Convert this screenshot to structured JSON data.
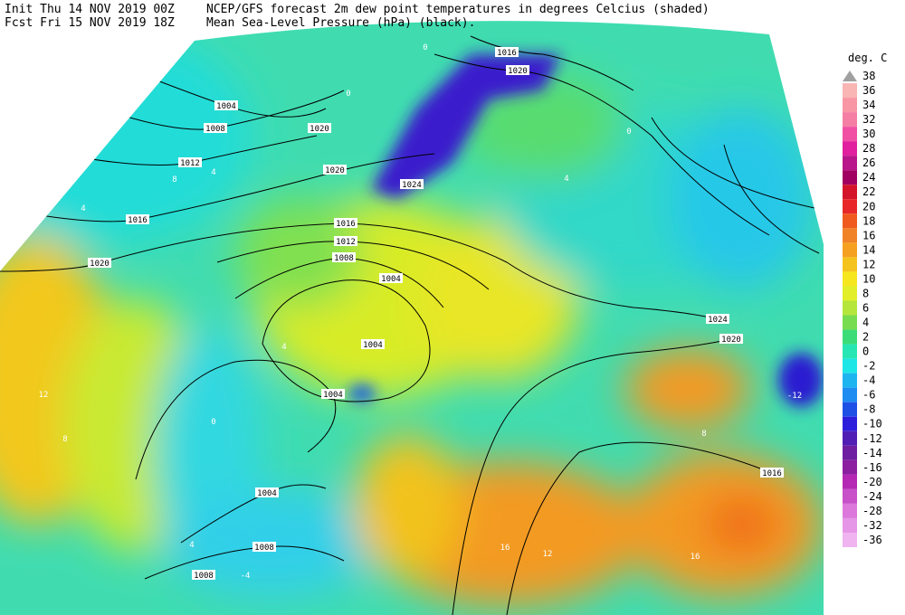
{
  "header": {
    "init": "Init  Thu 14 NOV 2019 00Z",
    "forecast": "Fcst Fri 15 NOV 2019 18Z",
    "title": "NCEP/GFS forecast 2m dew point temperatures in degrees Celcius (shaded)",
    "subtitle": "Mean Sea-Level Pressure (hPa) (black)."
  },
  "legend": {
    "unit": "deg. C",
    "levels": [
      {
        "label": 38,
        "color": "#a0a0a0"
      },
      {
        "label": 36,
        "color": "#f9b4b4"
      },
      {
        "label": 34,
        "color": "#f896a6"
      },
      {
        "label": 32,
        "color": "#f57fa4"
      },
      {
        "label": 30,
        "color": "#f04fa3"
      },
      {
        "label": 28,
        "color": "#e0209e"
      },
      {
        "label": 26,
        "color": "#b8168a"
      },
      {
        "label": 24,
        "color": "#a00060"
      },
      {
        "label": 22,
        "color": "#d4142a"
      },
      {
        "label": 20,
        "color": "#e82828"
      },
      {
        "label": 18,
        "color": "#f05a1e"
      },
      {
        "label": 16,
        "color": "#f08228"
      },
      {
        "label": 14,
        "color": "#f5a020"
      },
      {
        "label": 12,
        "color": "#f5c31e"
      },
      {
        "label": 10,
        "color": "#f5e61e"
      },
      {
        "label": 8,
        "color": "#e1ee28"
      },
      {
        "label": 6,
        "color": "#b4e63c"
      },
      {
        "label": 4,
        "color": "#78dc50"
      },
      {
        "label": 2,
        "color": "#3cdc78"
      },
      {
        "label": 0,
        "color": "#28e6b4"
      },
      {
        "label": -2,
        "color": "#1ee6e6"
      },
      {
        "label": -4,
        "color": "#1eb4f0"
      },
      {
        "label": -6,
        "color": "#1e8cf0"
      },
      {
        "label": -8,
        "color": "#1e50e6"
      },
      {
        "label": -10,
        "color": "#2d1edc"
      },
      {
        "label": -12,
        "color": "#501eb4"
      },
      {
        "label": -14,
        "color": "#6e1ea0"
      },
      {
        "label": -16,
        "color": "#8c1ea0"
      },
      {
        "label": -20,
        "color": "#b428b4"
      },
      {
        "label": -24,
        "color": "#c850c8"
      },
      {
        "label": -28,
        "color": "#dc78dc"
      },
      {
        "label": -32,
        "color": "#e696e6"
      },
      {
        "label": -36,
        "color": "#f0b4f0"
      }
    ]
  },
  "isobar_labels": [
    1004,
    1008,
    1012,
    1016,
    1020,
    1020,
    1020,
    1016,
    1012,
    1008,
    1004,
    1004,
    1004,
    1004,
    1008,
    1008,
    1016,
    1020,
    1024,
    1024,
    1020,
    1016
  ],
  "dew_point_labels": [
    0,
    0,
    4,
    8,
    4,
    12,
    8,
    16,
    12,
    16,
    8,
    -4,
    4,
    0,
    4,
    0,
    4,
    -12
  ]
}
